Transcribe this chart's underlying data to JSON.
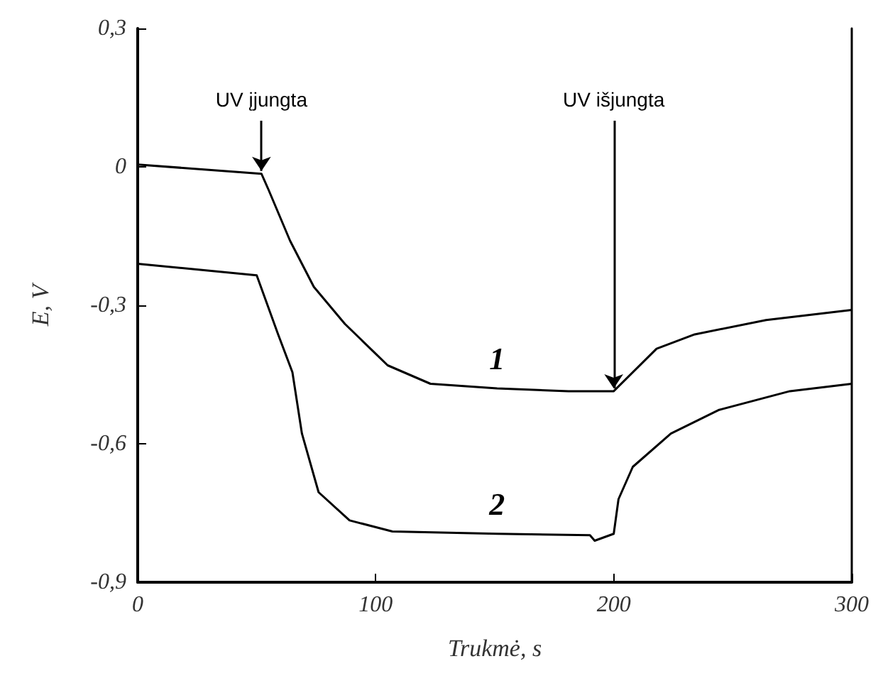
{
  "chart_data": {
    "type": "line",
    "xlabel": "Trukmė, s",
    "ylabel": "E, V",
    "xlim": [
      0,
      300
    ],
    "xticks": [
      0,
      100,
      200,
      300
    ],
    "ylim": [
      -0.9,
      0.3
    ],
    "yticks": [
      {
        "value": 0.3,
        "label": "0,3"
      },
      {
        "value": 0,
        "label": "0"
      },
      {
        "value": -0.3,
        "label": "-0,3"
      },
      {
        "value": -0.6,
        "label": "-0,6"
      },
      {
        "value": -0.9,
        "label": "-0,9"
      }
    ],
    "grid": false,
    "legend": false,
    "marker": "none",
    "line_style": "solid",
    "series": [
      {
        "name": "1",
        "color": "#000000",
        "x": [
          0,
          52,
          55,
          64,
          74,
          87,
          105,
          123,
          151,
          181,
          200,
          218,
          234,
          264,
          300
        ],
        "values": [
          0.005,
          -0.015,
          -0.05,
          -0.16,
          -0.26,
          -0.34,
          -0.43,
          -0.47,
          -0.48,
          -0.486,
          -0.486,
          -0.394,
          -0.363,
          -0.332,
          -0.31
        ]
      },
      {
        "name": "2",
        "color": "#000000",
        "x": [
          0,
          50,
          59,
          65,
          69,
          76,
          89,
          107,
          151,
          190,
          192,
          200,
          202,
          208,
          224,
          244,
          274,
          300
        ],
        "values": [
          -0.21,
          -0.235,
          -0.363,
          -0.445,
          -0.578,
          -0.705,
          -0.766,
          -0.79,
          -0.795,
          -0.798,
          -0.81,
          -0.795,
          -0.72,
          -0.65,
          -0.578,
          -0.527,
          -0.486,
          -0.47
        ]
      }
    ],
    "annotations": [
      {
        "text": "UV įjungta",
        "x": 52,
        "y": -0.015
      },
      {
        "text": "UV išjungta",
        "x": 200,
        "y": -0.486
      }
    ]
  }
}
